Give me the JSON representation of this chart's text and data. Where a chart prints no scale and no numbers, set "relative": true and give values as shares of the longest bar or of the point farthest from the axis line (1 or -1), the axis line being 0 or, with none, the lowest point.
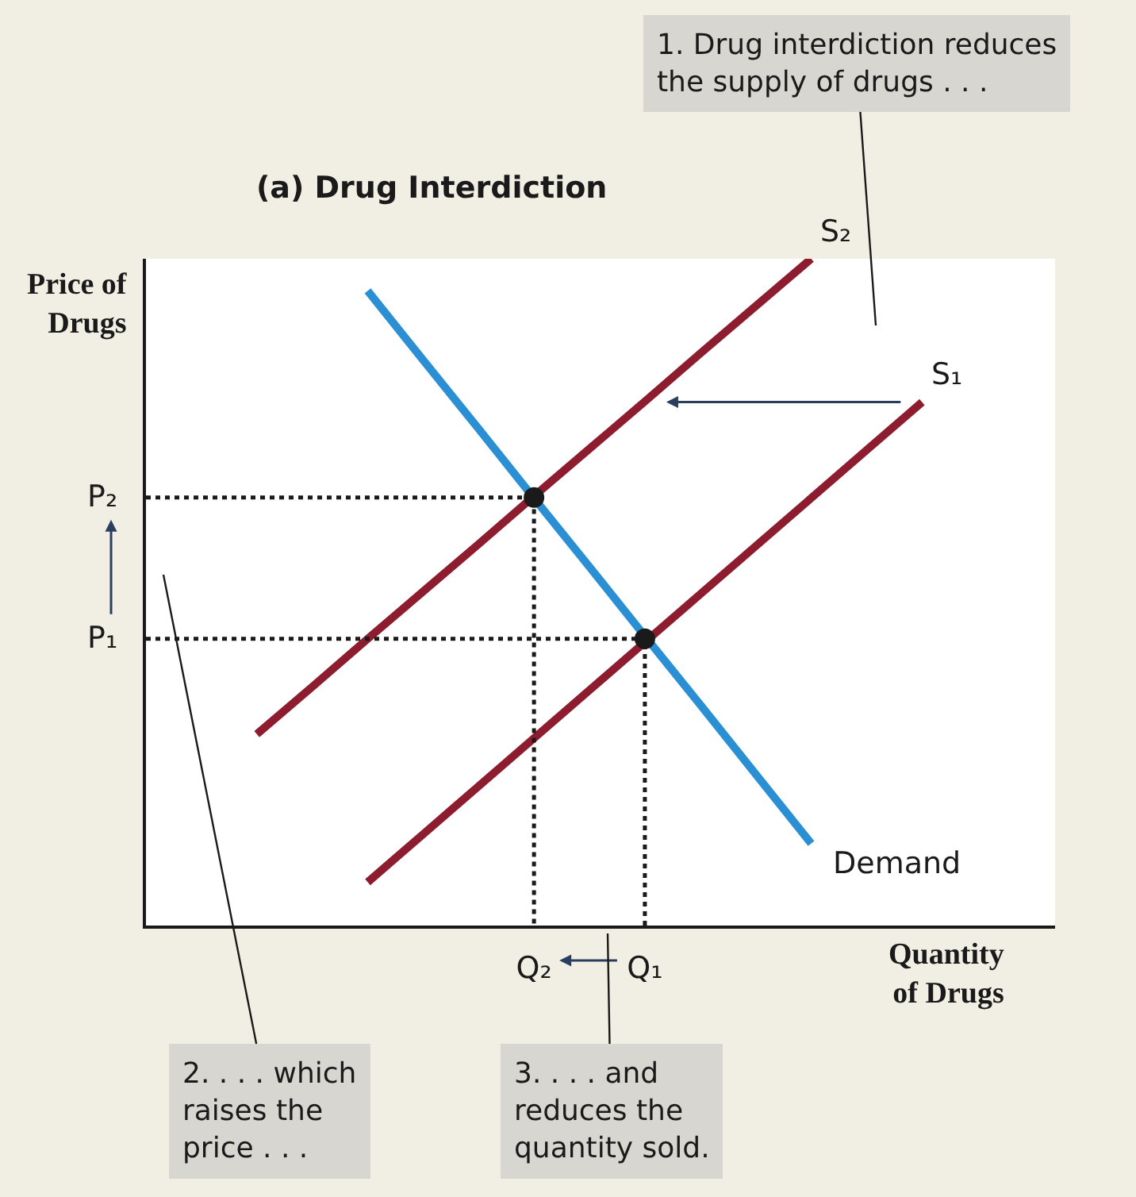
{
  "chart_data": {
    "type": "line",
    "relative": true,
    "title": "(a) Drug Interdiction",
    "xlabel": "Quantity\nof Drugs",
    "ylabel": "Price of\nDrugs",
    "legend": false,
    "marker": "none",
    "line_style": "solid",
    "categories": [
      null,
      null,
      null,
      null,
      null,
      null,
      "Q₂",
      null,
      "Q₁",
      null,
      null,
      null,
      null,
      null,
      null,
      null
    ],
    "series": [
      {
        "name": "Demand",
        "color": "#2b8fd3",
        "values": [
          null,
          null,
          null,
          0.952,
          0.848,
          0.745,
          0.641,
          0.538,
          0.434,
          0.331,
          0.227,
          0.123,
          null,
          null,
          null,
          null
        ]
      },
      {
        "name": "S₂",
        "color": "#8c1c2e",
        "values": [
          null,
          0.287,
          0.358,
          0.43,
          0.501,
          0.572,
          0.644,
          0.715,
          0.786,
          0.858,
          0.929,
          1.0,
          null,
          null,
          null,
          null
        ]
      },
      {
        "name": "S₁",
        "color": "#8c1c2e",
        "values": [
          null,
          null,
          null,
          0.065,
          0.137,
          0.209,
          0.281,
          0.353,
          0.425,
          0.497,
          0.569,
          0.641,
          0.713,
          0.785,
          null,
          null
        ]
      },
      {
        "type": "scatter",
        "color": "#1a1a1a",
        "marker": "circle",
        "line_style": "dotted",
        "values": [
          null,
          null,
          null,
          null,
          null,
          null,
          0.642,
          null,
          0.43,
          null,
          null,
          null,
          null,
          null,
          null,
          null
        ]
      }
    ],
    "annotations": [
      "P₂",
      "P₁",
      "1. Drug interdiction reduces\nthe supply of drugs . . .",
      "2. . . . which\nraises the\nprice . . .",
      "3. . . . and\nreduces the\nquantity sold."
    ]
  }
}
